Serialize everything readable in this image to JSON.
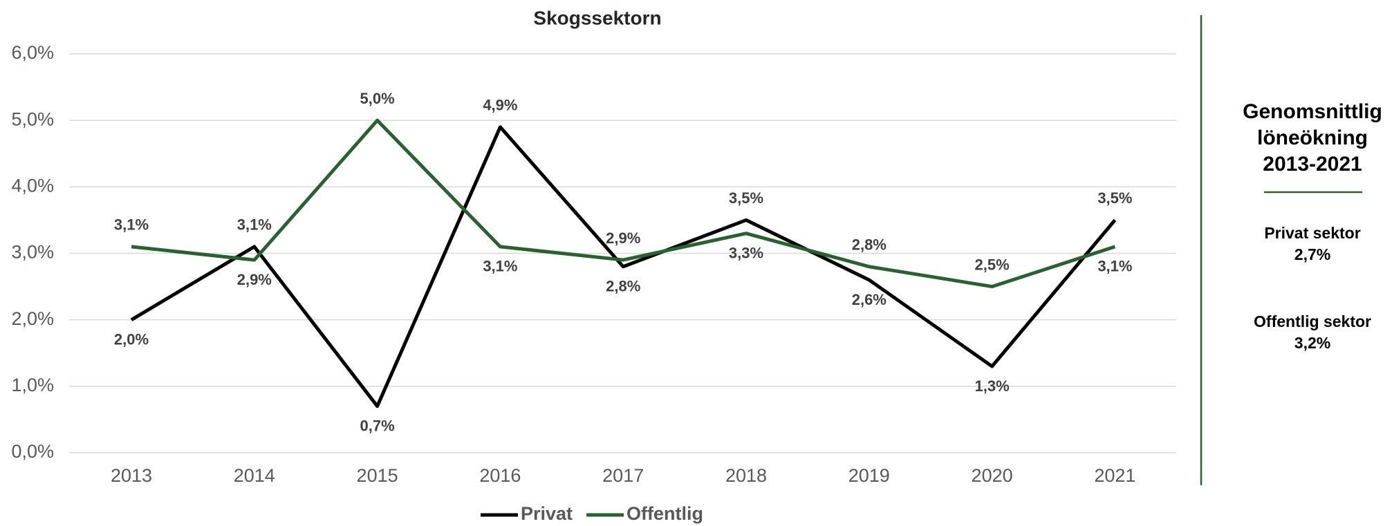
{
  "chart_data": {
    "type": "line",
    "title": "Skogssektorn",
    "categories": [
      "2013",
      "2014",
      "2015",
      "2016",
      "2017",
      "2018",
      "2019",
      "2020",
      "2021"
    ],
    "series": [
      {
        "name": "Privat",
        "color": "#000000",
        "values": [
          2.0,
          3.1,
          0.7,
          4.9,
          2.8,
          3.5,
          2.6,
          1.3,
          3.5
        ],
        "value_labels": [
          "2,0%",
          "3,1%",
          "0,7%",
          "4,9%",
          "2,8%",
          "3,5%",
          "2,6%",
          "1,3%",
          "3,5%"
        ]
      },
      {
        "name": "Offentlig",
        "color": "#2a6130",
        "values": [
          3.1,
          2.9,
          5.0,
          3.1,
          2.9,
          3.3,
          2.8,
          2.5,
          3.1
        ],
        "value_labels": [
          "3,1%",
          "2,9%",
          "5,0%",
          "3,1%",
          "2,9%",
          "3,3%",
          "2,8%",
          "2,5%",
          "3,1%"
        ]
      }
    ],
    "ylim": [
      0,
      6
    ],
    "yticks": [
      {
        "value": 0,
        "label": "0,0%"
      },
      {
        "value": 1,
        "label": "1,0%"
      },
      {
        "value": 2,
        "label": "2,0%"
      },
      {
        "value": 3,
        "label": "3,0%"
      },
      {
        "value": 4,
        "label": "4,0%"
      },
      {
        "value": 5,
        "label": "5,0%"
      },
      {
        "value": 6,
        "label": "6,0%"
      }
    ],
    "grid": true,
    "legend": "bottom"
  },
  "side_panel": {
    "title": [
      "Genomsnittlig",
      "löneökning",
      "2013-2021"
    ],
    "items": [
      {
        "label": "Privat sektor",
        "value": "2,7%"
      },
      {
        "label": "Offentlig sektor",
        "value": "3,2%"
      }
    ]
  }
}
